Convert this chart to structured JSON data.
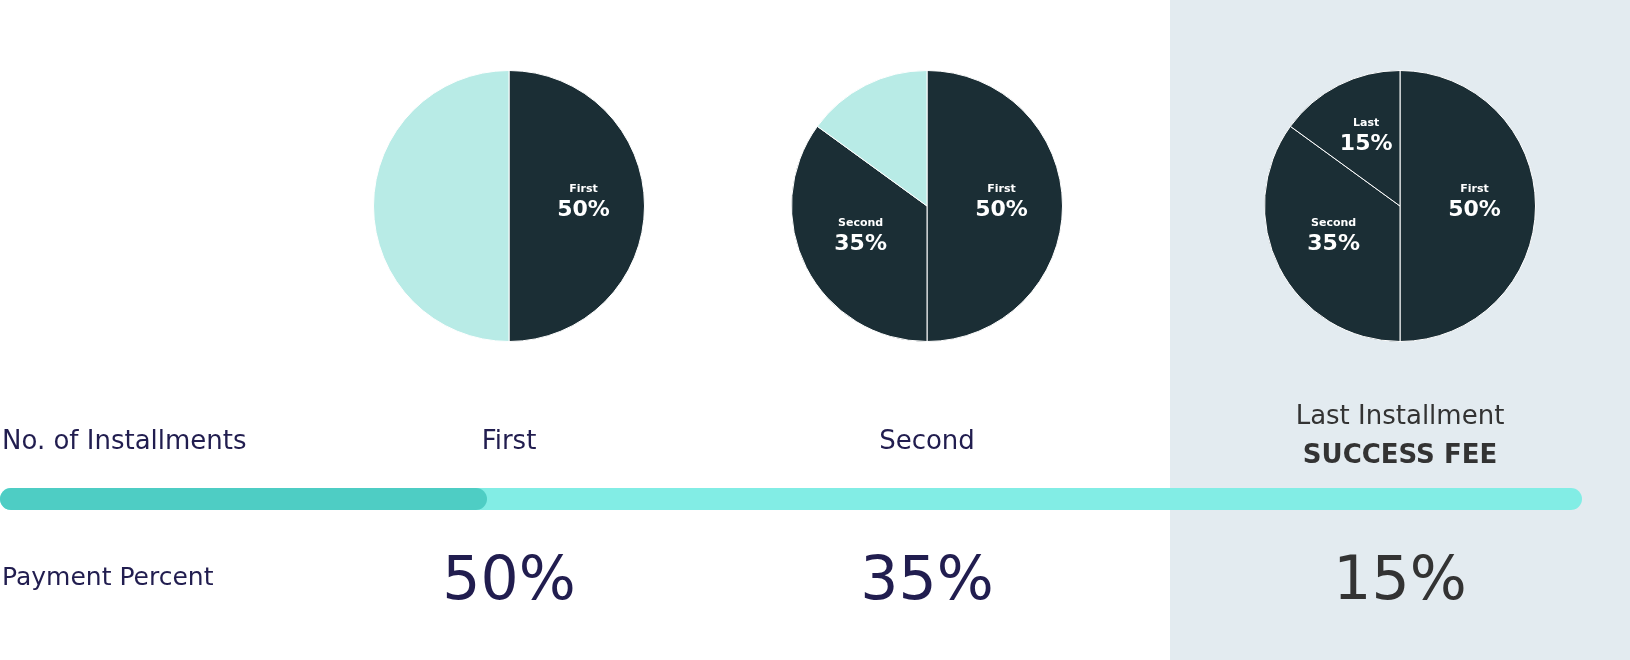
{
  "chart_data": [
    {
      "type": "pie",
      "categories": [
        "First",
        null
      ],
      "values": [
        50,
        50
      ],
      "colors": [
        "#1b2e35",
        "#b8ebe6"
      ],
      "value_labels": [
        "50%",
        null
      ]
    },
    {
      "type": "pie",
      "categories": [
        "First",
        "Second",
        null
      ],
      "values": [
        50,
        35,
        15
      ],
      "colors": [
        "#1b2e35",
        "#1b2e35",
        "#b8ebe6"
      ],
      "value_labels": [
        "50%",
        "35%",
        null
      ]
    },
    {
      "type": "pie",
      "categories": [
        "First",
        "Second",
        "Last"
      ],
      "values": [
        50,
        35,
        15
      ],
      "colors": [
        "#1b2e35",
        "#1b2e35",
        "#1b2e35"
      ],
      "value_labels": [
        "50%",
        "35%",
        "15%"
      ]
    },
    {
      "type": "other",
      "annotations": [
        "No. of Installments",
        "First",
        "Second",
        "Last Installment",
        "SUCCESS FEE",
        "Payment Percent",
        "50%",
        "35%",
        "15%"
      ]
    }
  ]
}
